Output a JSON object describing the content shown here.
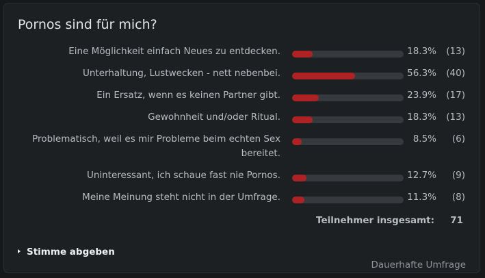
{
  "poll": {
    "title": "Pornos sind für mich?",
    "options": [
      {
        "label": "Eine Möglichkeit einfach Neues zu entdecken.",
        "percent": "18.3%",
        "count": "(13)",
        "fraction": 0.183
      },
      {
        "label": "Unterhaltung, Lustwecken - nett nebenbei.",
        "percent": "56.3%",
        "count": "(40)",
        "fraction": 0.563
      },
      {
        "label": "Ein Ersatz, wenn es keinen Partner gibt.",
        "percent": "23.9%",
        "count": "(17)",
        "fraction": 0.239
      },
      {
        "label": "Gewohnheit und/oder Ritual.",
        "percent": "18.3%",
        "count": "(13)",
        "fraction": 0.183
      },
      {
        "label": "Problematisch, weil es mir Probleme beim echten Sex bereitet.",
        "percent": "8.5%",
        "count": "(6)",
        "fraction": 0.085
      },
      {
        "label": "Uninteressant, ich schaue fast nie Pornos.",
        "percent": "12.7%",
        "count": "(9)",
        "fraction": 0.127
      },
      {
        "label": "Meine Meinung steht nicht in der Umfrage.",
        "percent": "11.3%",
        "count": "(8)",
        "fraction": 0.113
      }
    ],
    "total_label": "Teilnehmer insgesamt:",
    "total_value": "71",
    "vote_label": "Stimme abgeben",
    "footer": "Dauerhafte Umfrage",
    "accent_color": "#ad2325"
  }
}
